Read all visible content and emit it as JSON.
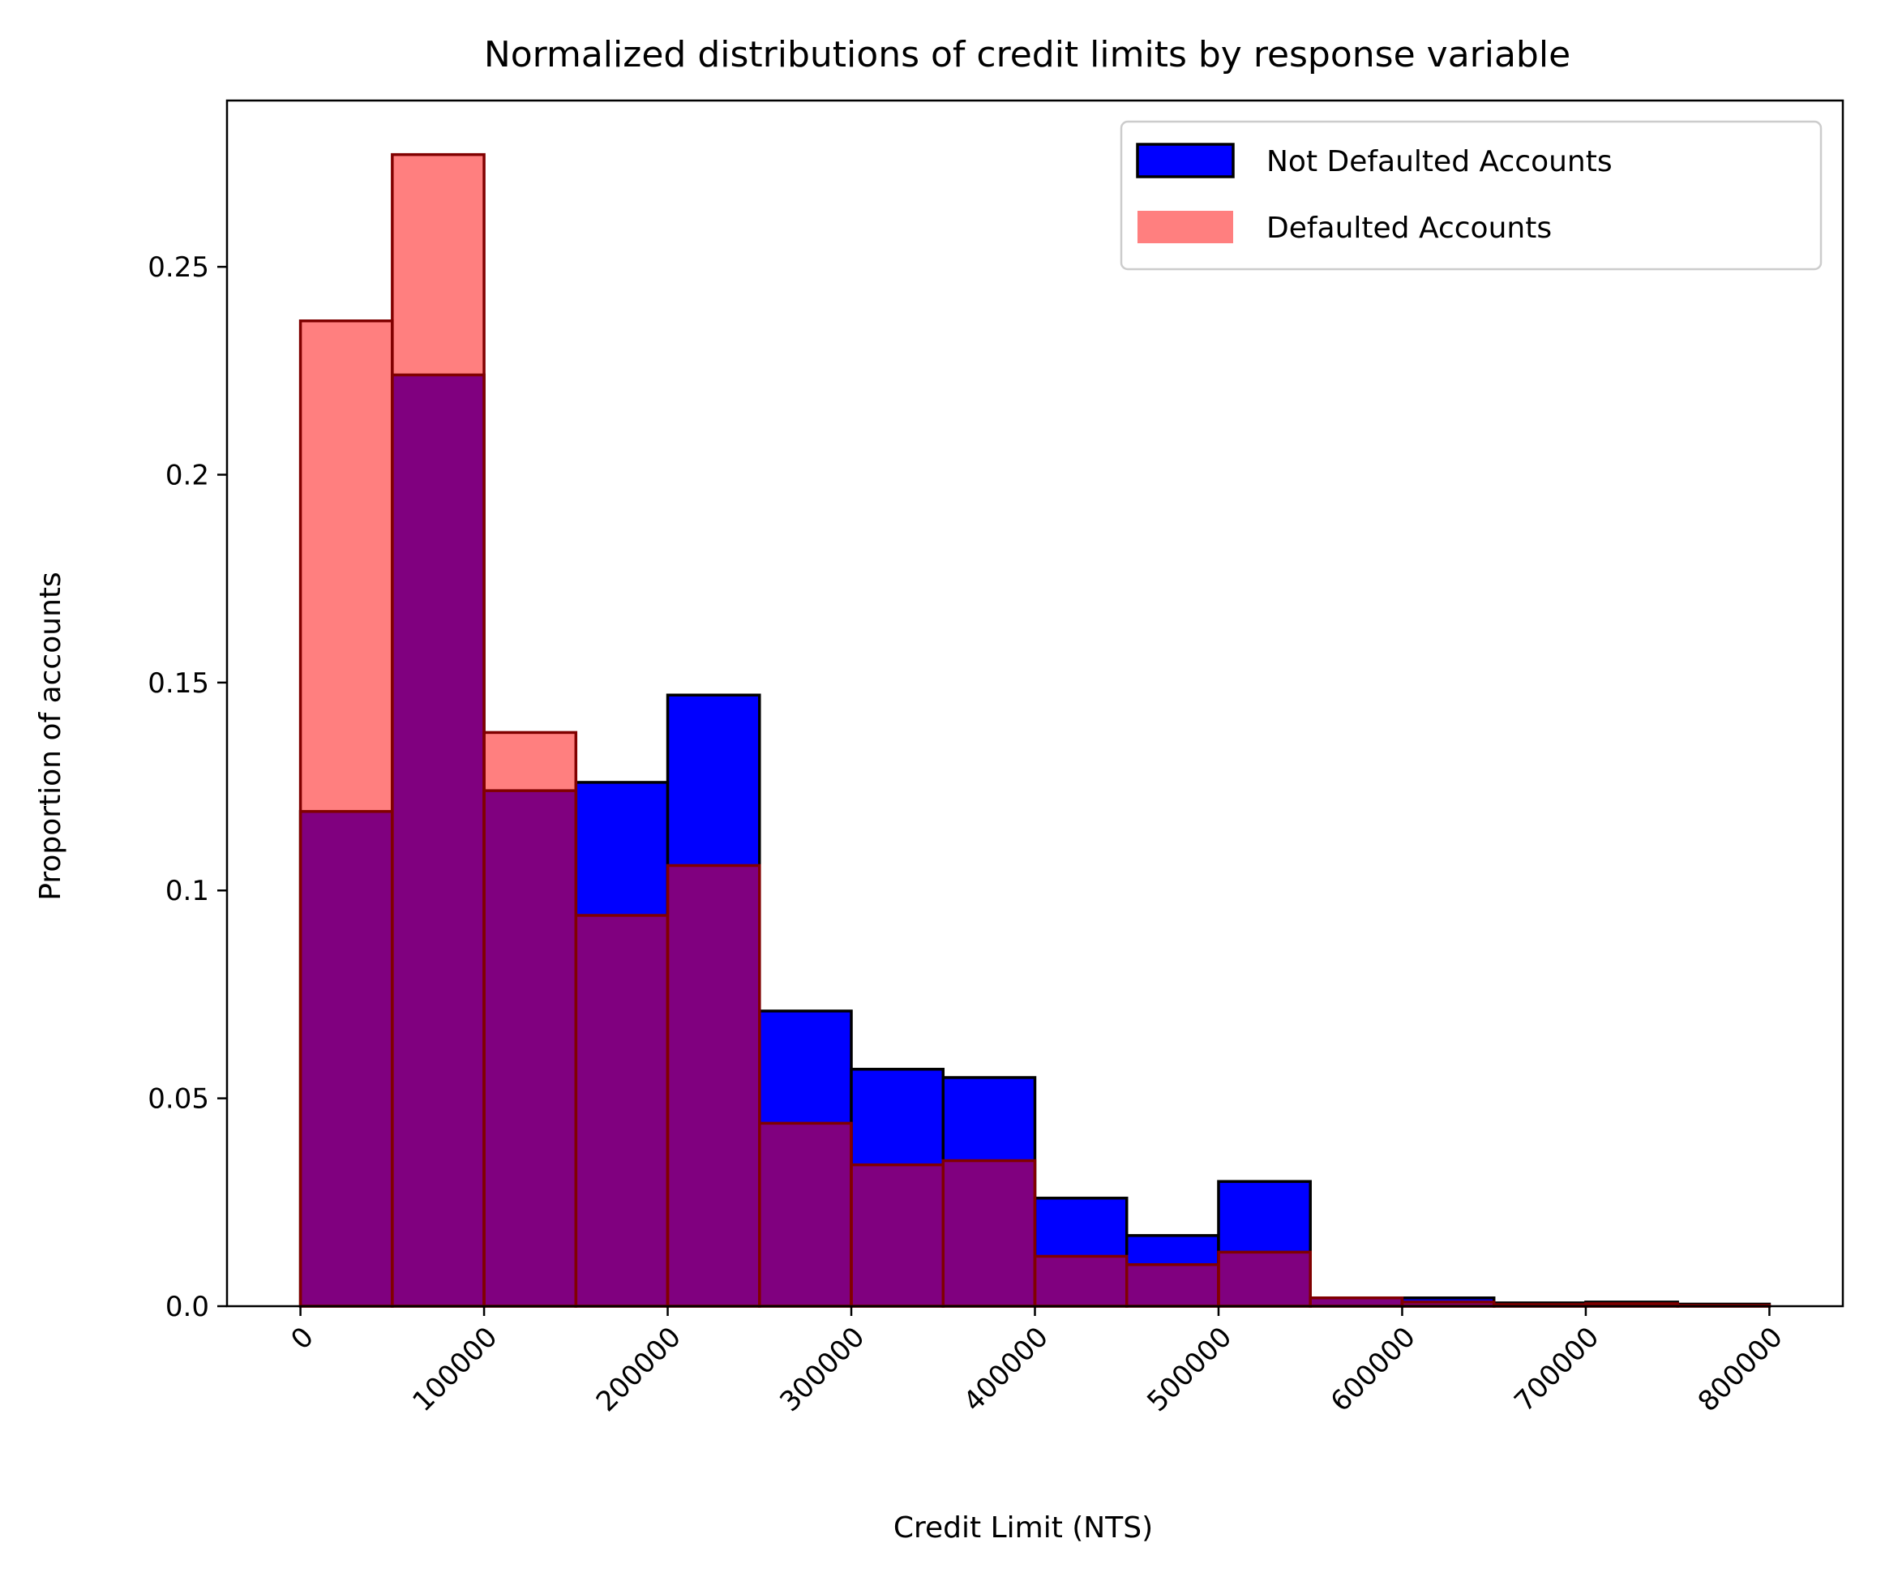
{
  "chart_data": {
    "type": "bar",
    "title": "Normalized distributions of credit limits by response variable",
    "xlabel": "Credit Limit (NTS)",
    "ylabel": "Proportion of accounts",
    "xlim": [
      -40000,
      840000
    ],
    "ylim": [
      0,
      0.29
    ],
    "bin_edges": [
      0,
      50000,
      100000,
      150000,
      200000,
      250000,
      300000,
      350000,
      400000,
      450000,
      500000,
      550000,
      600000,
      650000,
      700000,
      750000,
      800000
    ],
    "x_ticks": [
      0,
      100000,
      200000,
      300000,
      400000,
      500000,
      600000,
      700000,
      800000
    ],
    "x_tick_labels": [
      "0",
      "100000",
      "200000",
      "300000",
      "400000",
      "500000",
      "600000",
      "700000",
      "800000"
    ],
    "y_ticks": [
      0.0,
      0.05,
      0.1,
      0.15,
      0.2,
      0.25
    ],
    "y_tick_labels": [
      "0.0",
      "0.05",
      "0.1",
      "0.15",
      "0.2",
      "0.25"
    ],
    "legend_position": "top-right",
    "series": [
      {
        "name": "Not Defaulted Accounts",
        "color": "#0000ff",
        "edgecolor": "#000000",
        "alpha": 1.0,
        "values": [
          0.119,
          0.224,
          0.124,
          0.126,
          0.147,
          0.071,
          0.057,
          0.055,
          0.026,
          0.017,
          0.03,
          0.002,
          0.002,
          0.0008,
          0.001,
          0.0005
        ]
      },
      {
        "name": "Defaulted Accounts",
        "color": "#ff0000",
        "edgecolor": "#800000",
        "alpha": 0.5,
        "values": [
          0.237,
          0.277,
          0.138,
          0.094,
          0.106,
          0.044,
          0.034,
          0.035,
          0.012,
          0.01,
          0.013,
          0.002,
          0.001,
          0.0004,
          0.0006,
          0.0002
        ]
      }
    ]
  }
}
